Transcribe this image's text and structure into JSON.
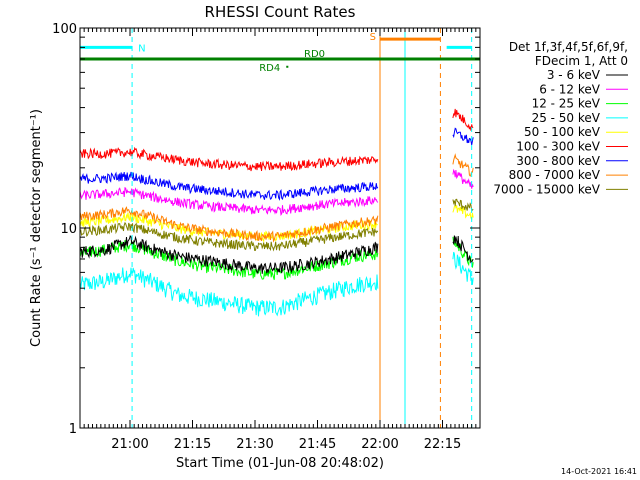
{
  "chart_data": {
    "type": "line",
    "title": "RHESSI Count Rates",
    "xlabel": "Start Time (01-Jun-08 20:48:02)",
    "ylabel": "Count Rate (s⁻¹ detector segment⁻¹)",
    "y_scale": "log",
    "ylim": [
      1,
      100
    ],
    "xlim_minutes_after_2048": [
      0,
      96
    ],
    "x_ticks": [
      {
        "minutes": 12,
        "label": "21:00"
      },
      {
        "minutes": 27,
        "label": "21:15"
      },
      {
        "minutes": 42,
        "label": "21:30"
      },
      {
        "minutes": 57,
        "label": "21:45"
      },
      {
        "minutes": 72,
        "label": "22:00"
      },
      {
        "minutes": 87,
        "label": "22:15"
      }
    ],
    "y_ticks": [
      {
        "value": 1,
        "label": "1"
      },
      {
        "value": 10,
        "label": "10"
      },
      {
        "value": 100,
        "label": "100"
      }
    ],
    "legend_header": [
      "Det 1f,3f,4f,5f,6f,9f,",
      "FDecim 1, Att 0"
    ],
    "legend_position": "right, outside plot",
    "data_gap_minutes": [
      71.5,
      89.5
    ],
    "series": [
      {
        "name": "3 - 6 keV",
        "color": "#000000",
        "x": [
          0,
          6,
          12,
          18,
          24,
          30,
          36,
          42,
          48,
          54,
          60,
          66,
          71,
          90,
          94
        ],
        "values": [
          7.6,
          7.8,
          8.6,
          7.8,
          7.2,
          6.9,
          6.6,
          6.3,
          6.3,
          6.6,
          7.0,
          7.5,
          8.0,
          9.0,
          7.0
        ]
      },
      {
        "name": "6 - 12 keV",
        "color": "#ff00ff",
        "x": [
          0,
          6,
          12,
          18,
          24,
          30,
          36,
          42,
          48,
          54,
          60,
          66,
          71,
          90,
          94
        ],
        "values": [
          14.5,
          14.8,
          15.2,
          14.2,
          13.4,
          12.9,
          12.6,
          12.3,
          12.3,
          12.8,
          13.2,
          13.5,
          13.8,
          19,
          16
        ]
      },
      {
        "name": "12 - 25 keV",
        "color": "#00ff00",
        "x": [
          0,
          6,
          12,
          18,
          24,
          30,
          36,
          42,
          48,
          54,
          60,
          66,
          71,
          90,
          94
        ],
        "values": [
          7.4,
          7.8,
          8.3,
          7.5,
          6.8,
          6.4,
          6.2,
          5.9,
          5.9,
          6.3,
          6.7,
          7.2,
          7.4,
          8.5,
          6.6
        ]
      },
      {
        "name": "25 - 50 keV",
        "color": "#00ffff",
        "x": [
          0,
          6,
          12,
          18,
          24,
          30,
          36,
          42,
          48,
          54,
          60,
          66,
          71,
          90,
          94
        ],
        "values": [
          5.2,
          5.4,
          6.0,
          5.3,
          4.6,
          4.4,
          4.2,
          4.0,
          4.0,
          4.4,
          4.8,
          5.2,
          5.4,
          7.0,
          5.6
        ]
      },
      {
        "name": "50 - 100 keV",
        "color": "#ffff00",
        "x": [
          0,
          6,
          12,
          18,
          24,
          30,
          36,
          42,
          48,
          54,
          60,
          66,
          71,
          90,
          94
        ],
        "values": [
          10.6,
          10.9,
          11.4,
          10.6,
          9.9,
          9.5,
          9.3,
          9.1,
          9.1,
          9.5,
          9.9,
          10.3,
          10.5,
          12.5,
          11.5
        ]
      },
      {
        "name": "100 - 300 keV",
        "color": "#ff0000",
        "x": [
          0,
          6,
          12,
          18,
          24,
          30,
          36,
          42,
          48,
          54,
          60,
          66,
          71,
          90,
          94
        ],
        "values": [
          23.5,
          23.5,
          24.0,
          22.8,
          21.8,
          21.0,
          20.6,
          20.3,
          20.3,
          20.8,
          21.3,
          21.7,
          22.0,
          38,
          32
        ]
      },
      {
        "name": "300 - 800 keV",
        "color": "#0000ff",
        "x": [
          0,
          6,
          12,
          18,
          24,
          30,
          36,
          42,
          48,
          54,
          60,
          66,
          71,
          90,
          94
        ],
        "values": [
          17.6,
          17.7,
          18.3,
          17.0,
          16.0,
          15.5,
          15.1,
          14.6,
          14.6,
          15.1,
          15.6,
          15.9,
          16.2,
          30,
          27
        ]
      },
      {
        "name": "800 - 7000 keV",
        "color": "#ff8000",
        "x": [
          0,
          6,
          12,
          18,
          24,
          30,
          36,
          42,
          48,
          54,
          60,
          66,
          71,
          90,
          94
        ],
        "values": [
          11.4,
          11.7,
          12.3,
          11.2,
          10.2,
          9.7,
          9.4,
          9.1,
          9.1,
          9.6,
          10.1,
          10.6,
          10.9,
          22,
          19
        ]
      },
      {
        "name": "7000 - 15000 keV",
        "color": "#808000",
        "x": [
          0,
          6,
          12,
          18,
          24,
          30,
          36,
          42,
          48,
          54,
          60,
          66,
          71,
          90,
          94
        ],
        "values": [
          9.6,
          9.8,
          10.2,
          9.5,
          8.9,
          8.5,
          8.3,
          8.1,
          8.1,
          8.5,
          8.9,
          9.3,
          9.6,
          13.5,
          12.5
        ]
      }
    ],
    "flag_bars": [
      {
        "label": "N",
        "color": "#00ffff",
        "value": 80,
        "x_start": 0,
        "x_end": 12.5
      },
      {
        "label": "S",
        "color": "#ff8000",
        "value": 88,
        "x_start": 72,
        "x_end": 86.5
      },
      {
        "label": "",
        "color": "#00ffff",
        "value": 80,
        "x_start": 88,
        "x_end": 94
      },
      {
        "label": "RD0",
        "color": "#008000",
        "value": 70,
        "x_start": 0,
        "x_end": 96
      },
      {
        "label": "RD4",
        "color": "#008000",
        "value": 64,
        "x_start": 49.5,
        "x_end": 50
      }
    ],
    "vertical_markers": [
      {
        "color": "#00ffff",
        "style": "solid",
        "x": 0
      },
      {
        "color": "#00ffff",
        "style": "dashed",
        "x": 12.5
      },
      {
        "color": "#ff8000",
        "style": "solid",
        "x": 72
      },
      {
        "color": "#00ffff",
        "style": "solid",
        "x": 78
      },
      {
        "color": "#ff8000",
        "style": "dashed",
        "x": 86.5
      },
      {
        "color": "#00ffff",
        "style": "dashed",
        "x": 94
      }
    ]
  },
  "footer": {
    "timestamp": "14-Oct-2021 16:41"
  },
  "colors": {
    "background": "#ffffff",
    "axes": "#000000"
  }
}
